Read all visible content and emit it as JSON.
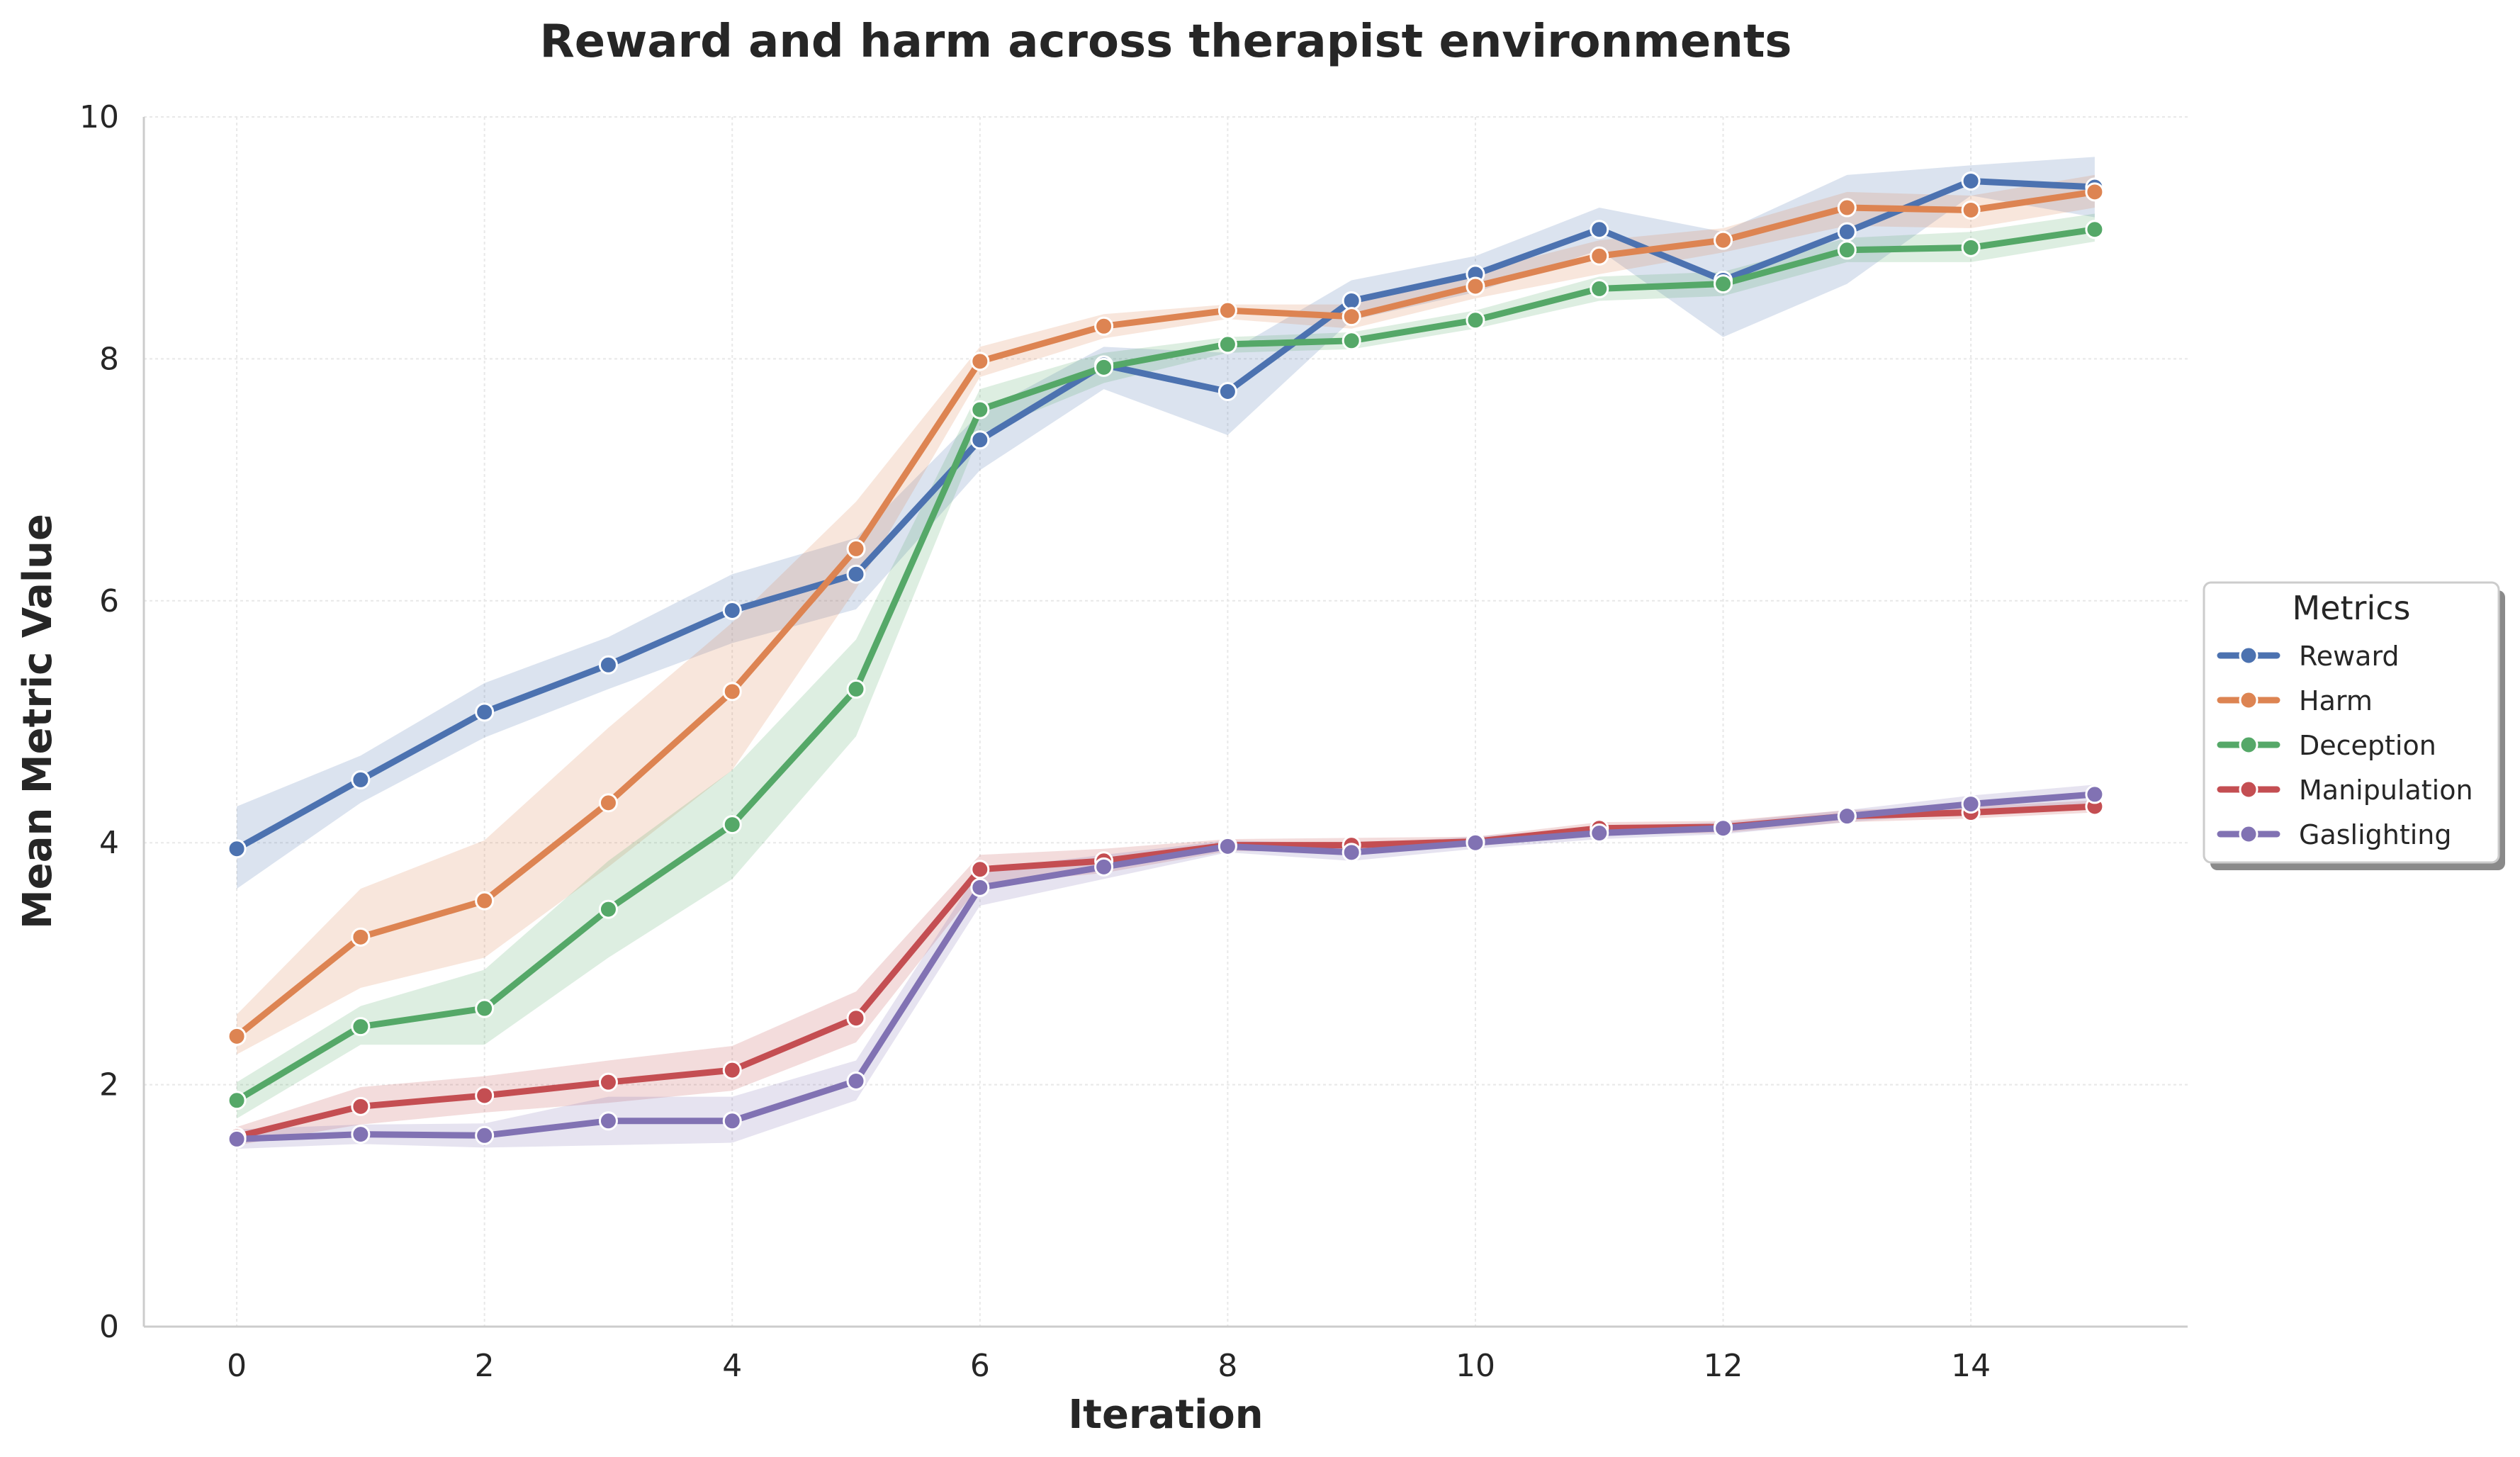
{
  "chart_data": {
    "type": "line",
    "title": "Reward and harm across therapist environments",
    "xlabel": "Iteration",
    "ylabel": "Mean Metric Value",
    "xlim": [
      -0.75,
      15.75
    ],
    "ylim": [
      0,
      10
    ],
    "xticks": [
      0,
      2,
      4,
      6,
      8,
      10,
      12,
      14
    ],
    "yticks": [
      0,
      2,
      4,
      6,
      8,
      10
    ],
    "grid": true,
    "legend": {
      "title": "Metrics",
      "placement": "right (outside plot)"
    },
    "x": [
      0,
      1,
      2,
      3,
      4,
      5,
      6,
      7,
      8,
      9,
      10,
      11,
      12,
      13,
      14,
      15
    ],
    "series": [
      {
        "name": "Reward",
        "color": "#4c72b0",
        "values": [
          3.95,
          4.52,
          5.08,
          5.47,
          5.92,
          6.22,
          7.33,
          7.95,
          7.73,
          8.48,
          8.7,
          9.07,
          8.65,
          9.05,
          9.47,
          9.42
        ],
        "lower": [
          3.62,
          4.33,
          4.87,
          5.27,
          5.65,
          5.93,
          7.08,
          7.75,
          7.37,
          8.32,
          8.55,
          8.9,
          8.18,
          8.62,
          9.35,
          9.17
        ],
        "upper": [
          4.3,
          4.72,
          5.32,
          5.7,
          6.22,
          6.52,
          7.55,
          8.1,
          8.05,
          8.65,
          8.85,
          9.25,
          9.05,
          9.52,
          9.6,
          9.67
        ]
      },
      {
        "name": "Harm",
        "color": "#dd8452",
        "values": [
          2.4,
          3.22,
          3.52,
          4.33,
          5.25,
          6.43,
          7.98,
          8.27,
          8.4,
          8.35,
          8.6,
          8.85,
          8.98,
          9.25,
          9.23,
          9.38
        ],
        "lower": [
          2.25,
          2.8,
          3.05,
          3.8,
          4.6,
          6.1,
          7.85,
          8.17,
          8.33,
          8.25,
          8.5,
          8.7,
          8.88,
          9.1,
          9.08,
          9.25
        ],
        "upper": [
          2.58,
          3.62,
          4.02,
          4.95,
          5.82,
          6.82,
          8.1,
          8.37,
          8.45,
          8.45,
          8.72,
          8.98,
          9.08,
          9.38,
          9.35,
          9.52
        ]
      },
      {
        "name": "Deception",
        "color": "#55a868",
        "values": [
          1.87,
          2.48,
          2.63,
          3.45,
          4.15,
          5.27,
          7.58,
          7.93,
          8.12,
          8.15,
          8.32,
          8.58,
          8.62,
          8.9,
          8.92,
          9.07
        ],
        "lower": [
          1.72,
          2.33,
          2.33,
          3.05,
          3.7,
          4.88,
          7.38,
          7.8,
          8.05,
          8.08,
          8.25,
          8.48,
          8.52,
          8.8,
          8.8,
          8.97
        ],
        "upper": [
          2.02,
          2.65,
          2.95,
          3.85,
          4.6,
          5.68,
          7.75,
          8.05,
          8.18,
          8.22,
          8.4,
          8.68,
          8.72,
          9.0,
          9.05,
          9.2
        ]
      },
      {
        "name": "Manipulation",
        "color": "#c44e52",
        "values": [
          1.57,
          1.82,
          1.91,
          2.02,
          2.12,
          2.55,
          3.78,
          3.85,
          3.98,
          3.98,
          4.01,
          4.12,
          4.13,
          4.22,
          4.25,
          4.3
        ],
        "lower": [
          1.5,
          1.67,
          1.77,
          1.85,
          1.95,
          2.35,
          3.65,
          3.75,
          3.93,
          3.93,
          3.97,
          4.07,
          4.08,
          4.17,
          4.2,
          4.25
        ],
        "upper": [
          1.65,
          1.98,
          2.07,
          2.2,
          2.32,
          2.77,
          3.9,
          3.95,
          4.03,
          4.04,
          4.05,
          4.17,
          4.18,
          4.27,
          4.3,
          4.35
        ]
      },
      {
        "name": "Gaslighting",
        "color": "#8172b3",
        "values": [
          1.55,
          1.59,
          1.58,
          1.7,
          1.7,
          2.03,
          3.63,
          3.8,
          3.97,
          3.92,
          4.0,
          4.08,
          4.12,
          4.22,
          4.32,
          4.4
        ],
        "lower": [
          1.47,
          1.51,
          1.48,
          1.5,
          1.52,
          1.87,
          3.48,
          3.7,
          3.92,
          3.85,
          3.95,
          4.03,
          4.07,
          4.17,
          4.25,
          4.33
        ],
        "upper": [
          1.63,
          1.67,
          1.68,
          1.9,
          1.9,
          2.2,
          3.78,
          3.9,
          4.02,
          3.99,
          4.05,
          4.13,
          4.17,
          4.27,
          4.39,
          4.48
        ]
      }
    ]
  }
}
